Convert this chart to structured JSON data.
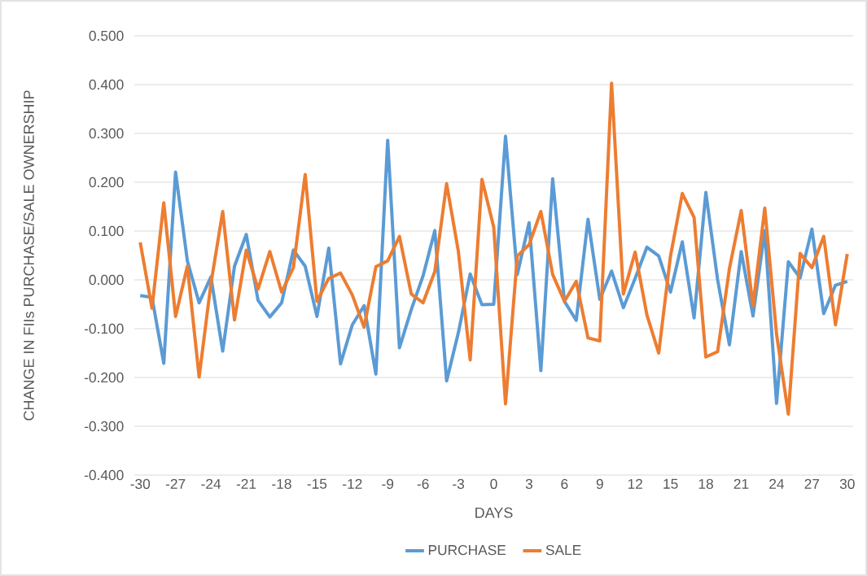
{
  "chart_data": {
    "type": "line",
    "xlabel": "DAYS",
    "ylabel": "CHANGE IN FIIs PURCHASE/SALE OWNERSHIP",
    "x": [
      -30,
      -29,
      -28,
      -27,
      -26,
      -25,
      -24,
      -23,
      -22,
      -21,
      -20,
      -19,
      -18,
      -17,
      -16,
      -15,
      -14,
      -13,
      -12,
      -11,
      -10,
      -9,
      -8,
      -7,
      -6,
      -5,
      -4,
      -3,
      -2,
      -1,
      0,
      1,
      2,
      3,
      4,
      5,
      6,
      7,
      8,
      9,
      10,
      11,
      12,
      13,
      14,
      15,
      16,
      17,
      18,
      19,
      20,
      21,
      22,
      23,
      24,
      25,
      26,
      27,
      28,
      29,
      30
    ],
    "series": [
      {
        "name": "PURCHASE",
        "color": "#5b9bd5",
        "values": [
          -0.032,
          -0.036,
          -0.171,
          0.221,
          0.039,
          -0.047,
          0.006,
          -0.146,
          0.028,
          0.093,
          -0.042,
          -0.076,
          -0.047,
          0.061,
          0.028,
          -0.075,
          0.065,
          -0.172,
          -0.092,
          -0.053,
          -0.193,
          0.286,
          -0.139,
          -0.061,
          0.008,
          0.101,
          -0.207,
          -0.108,
          0.012,
          -0.051,
          -0.05,
          0.294,
          0.011,
          0.117,
          -0.186,
          0.207,
          -0.044,
          -0.083,
          0.124,
          -0.04,
          0.018,
          -0.057,
          0.003,
          0.067,
          0.049,
          -0.025,
          0.078,
          -0.078,
          0.179,
          0.0,
          -0.133,
          0.058,
          -0.074,
          0.101,
          -0.253,
          0.037,
          0.004,
          0.104,
          -0.069,
          -0.011,
          -0.003
        ]
      },
      {
        "name": "SALE",
        "color": "#ed7d31",
        "values": [
          0.077,
          -0.058,
          0.158,
          -0.075,
          0.028,
          -0.199,
          -0.008,
          0.14,
          -0.082,
          0.061,
          -0.019,
          0.058,
          -0.025,
          0.025,
          0.216,
          -0.044,
          0.003,
          0.014,
          -0.031,
          -0.097,
          0.027,
          0.039,
          0.089,
          -0.029,
          -0.047,
          0.017,
          0.197,
          0.058,
          -0.164,
          0.206,
          0.108,
          -0.254,
          0.049,
          0.072,
          0.14,
          0.011,
          -0.044,
          -0.003,
          -0.119,
          -0.125,
          0.403,
          -0.029,
          0.057,
          -0.072,
          -0.15,
          0.049,
          0.177,
          0.128,
          -0.158,
          -0.147,
          0.023,
          0.142,
          -0.053,
          0.147,
          -0.111,
          -0.275,
          0.054,
          0.025,
          0.089,
          -0.092,
          0.053
        ]
      }
    ],
    "xlim": [
      -30.5,
      30.5
    ],
    "xticks": [
      -30,
      -27,
      -24,
      -21,
      -18,
      -15,
      -12,
      -9,
      -6,
      -3,
      0,
      3,
      6,
      9,
      12,
      15,
      18,
      21,
      24,
      27,
      30
    ],
    "ylim": [
      -0.4,
      0.5
    ],
    "yticks": [
      {
        "value": -0.4,
        "label": "-0.400"
      },
      {
        "value": -0.3,
        "label": "-0.300"
      },
      {
        "value": -0.2,
        "label": "-0.200"
      },
      {
        "value": -0.1,
        "label": "-0.100"
      },
      {
        "value": 0,
        "label": "0.000"
      },
      {
        "value": 0.1,
        "label": "0.100"
      },
      {
        "value": 0.2,
        "label": "0.200"
      },
      {
        "value": 0.3,
        "label": "0.300"
      },
      {
        "value": 0.4,
        "label": "0.400"
      },
      {
        "value": 0.5,
        "label": "0.500"
      }
    ],
    "grid": "y",
    "legend": "bottom"
  }
}
